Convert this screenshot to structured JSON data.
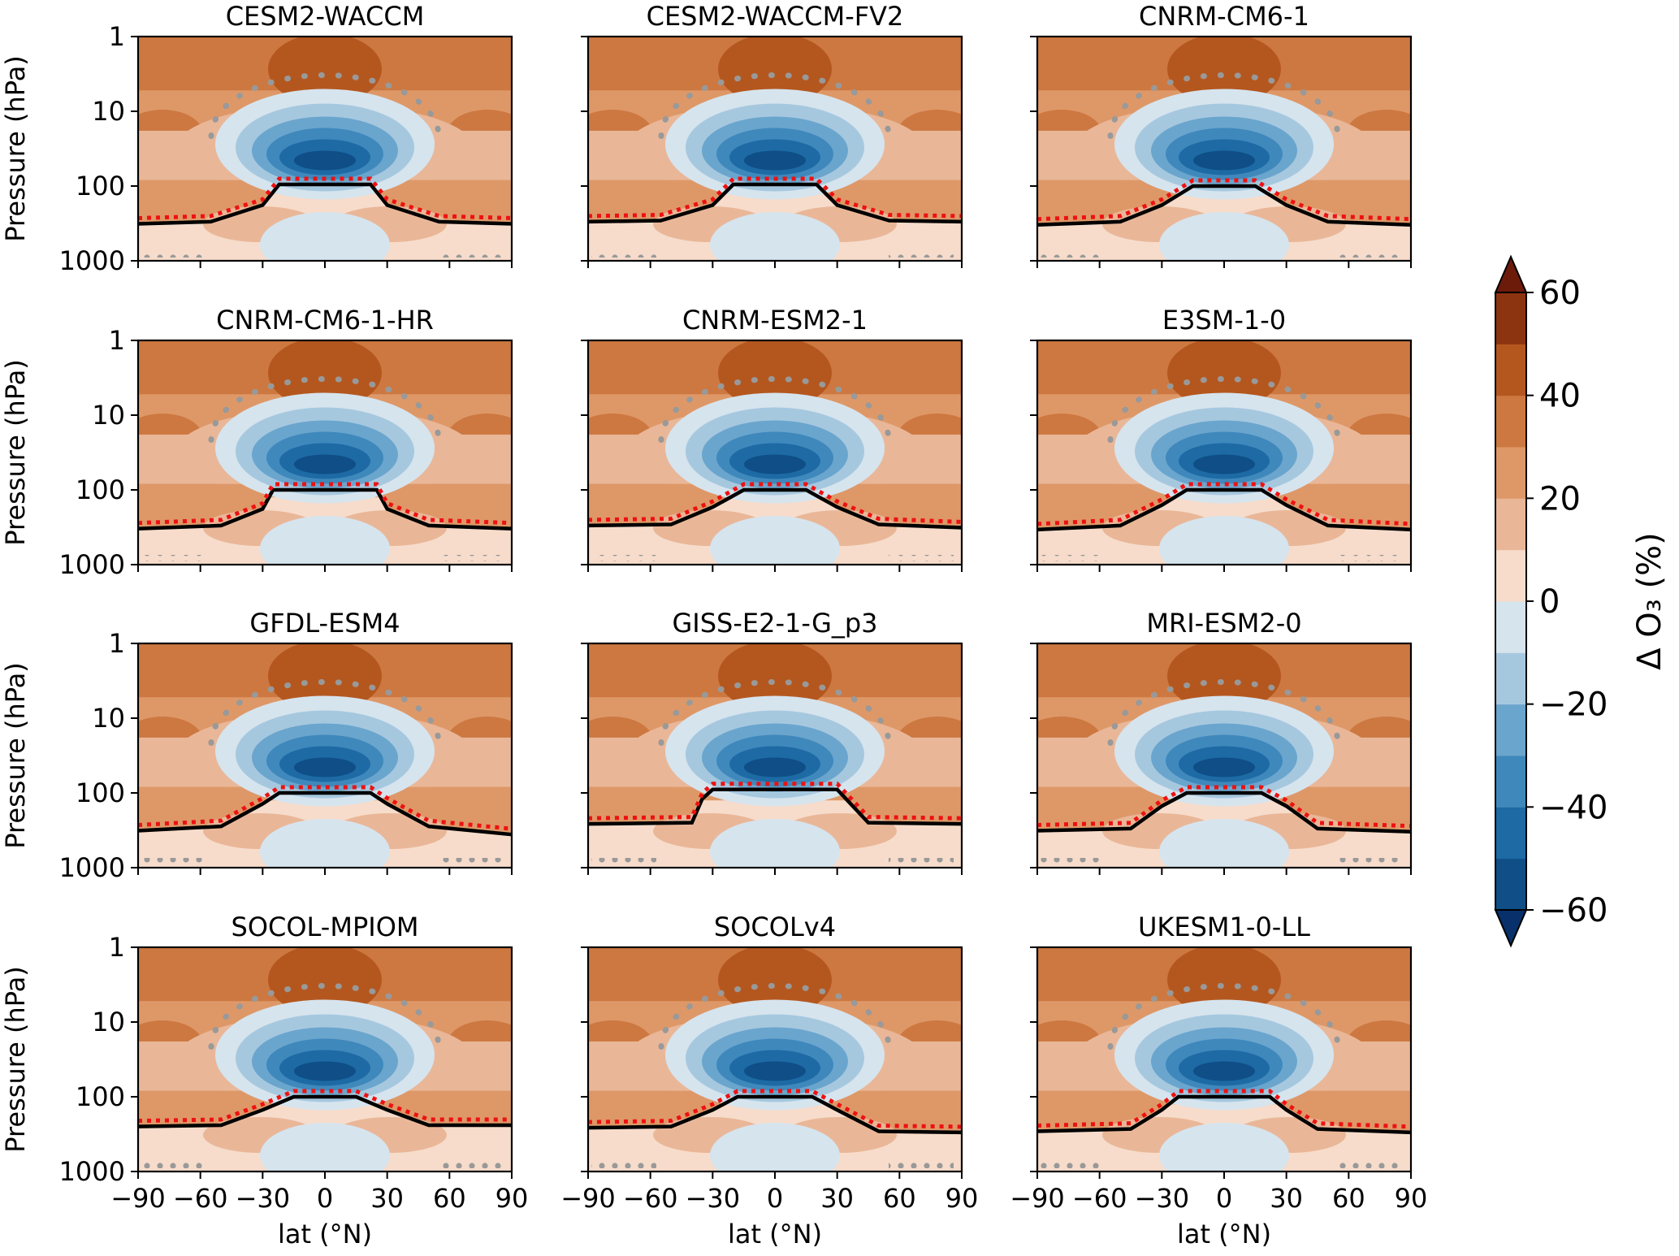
{
  "chart_data": {
    "type": "heatmap",
    "x_label": "lat (°N)",
    "y_label": "Pressure (hPa)",
    "x_ticks": [
      -90,
      -60,
      -30,
      0,
      30,
      60,
      90
    ],
    "x_tick_labels": [
      "−90",
      "−60",
      "−30",
      "0",
      "30",
      "60",
      "90"
    ],
    "xlim": [
      -90,
      90
    ],
    "y_ticks": [
      1,
      10,
      100,
      1000
    ],
    "y_tick_labels": [
      "1",
      "10",
      "100",
      "1000"
    ],
    "ylim": [
      1000,
      1
    ],
    "y_scale": "log",
    "colorbar": {
      "label": "Δ O₃ (%)",
      "ticks": [
        60,
        40,
        20,
        0,
        -20,
        -40,
        -60
      ],
      "tick_labels": [
        "60",
        "40",
        "20",
        "0",
        "−20",
        "−40",
        "−60"
      ],
      "levels": [
        -60,
        -50,
        -40,
        -30,
        -20,
        -10,
        0,
        10,
        20,
        30,
        40,
        50,
        60
      ],
      "colors": [
        "#08306b",
        "#0f4e86",
        "#1d6aa5",
        "#3f88bc",
        "#6aa5cd",
        "#a6c8df",
        "#d6e4ee",
        "#f7dccb",
        "#e9b798",
        "#de9868",
        "#cd7841",
        "#b4571f",
        "#8c3410",
        "#6c1b0b"
      ],
      "extend": "both"
    },
    "panels": [
      {
        "title": "CESM2-WACCM",
        "tropopause_hpa": [
          {
            "lat": -90,
            "p": 320
          },
          {
            "lat": -55,
            "p": 300
          },
          {
            "lat": -30,
            "p": 180
          },
          {
            "lat": -22,
            "p": 95
          },
          {
            "lat": 22,
            "p": 95
          },
          {
            "lat": 30,
            "p": 180
          },
          {
            "lat": 55,
            "p": 300
          },
          {
            "lat": 90,
            "p": 320
          }
        ]
      },
      {
        "title": "CESM2-WACCM-FV2",
        "tropopause_hpa": [
          {
            "lat": -90,
            "p": 300
          },
          {
            "lat": -55,
            "p": 290
          },
          {
            "lat": -30,
            "p": 180
          },
          {
            "lat": -20,
            "p": 95
          },
          {
            "lat": 20,
            "p": 95
          },
          {
            "lat": 30,
            "p": 180
          },
          {
            "lat": 55,
            "p": 290
          },
          {
            "lat": 90,
            "p": 300
          }
        ]
      },
      {
        "title": "CNRM-CM6-1",
        "tropopause_hpa": [
          {
            "lat": -90,
            "p": 330
          },
          {
            "lat": -50,
            "p": 300
          },
          {
            "lat": -30,
            "p": 180
          },
          {
            "lat": -15,
            "p": 100
          },
          {
            "lat": 15,
            "p": 100
          },
          {
            "lat": 30,
            "p": 180
          },
          {
            "lat": 50,
            "p": 300
          },
          {
            "lat": 90,
            "p": 330
          }
        ]
      },
      {
        "title": "CNRM-CM6-1-HR",
        "tropopause_hpa": [
          {
            "lat": -90,
            "p": 330
          },
          {
            "lat": -50,
            "p": 300
          },
          {
            "lat": -30,
            "p": 180
          },
          {
            "lat": -25,
            "p": 100
          },
          {
            "lat": 25,
            "p": 100
          },
          {
            "lat": 30,
            "p": 180
          },
          {
            "lat": 50,
            "p": 300
          },
          {
            "lat": 90,
            "p": 330
          }
        ]
      },
      {
        "title": "CNRM-ESM2-1",
        "tropopause_hpa": [
          {
            "lat": -90,
            "p": 300
          },
          {
            "lat": -50,
            "p": 290
          },
          {
            "lat": -30,
            "p": 170
          },
          {
            "lat": -15,
            "p": 100
          },
          {
            "lat": 15,
            "p": 100
          },
          {
            "lat": 30,
            "p": 170
          },
          {
            "lat": 50,
            "p": 290
          },
          {
            "lat": 90,
            "p": 320
          }
        ]
      },
      {
        "title": "E3SM-1-0",
        "tropopause_hpa": [
          {
            "lat": -90,
            "p": 340
          },
          {
            "lat": -50,
            "p": 300
          },
          {
            "lat": -30,
            "p": 160
          },
          {
            "lat": -18,
            "p": 100
          },
          {
            "lat": 18,
            "p": 100
          },
          {
            "lat": 30,
            "p": 160
          },
          {
            "lat": 50,
            "p": 300
          },
          {
            "lat": 90,
            "p": 340
          }
        ]
      },
      {
        "title": "GFDL-ESM4",
        "tropopause_hpa": [
          {
            "lat": -90,
            "p": 320
          },
          {
            "lat": -50,
            "p": 280
          },
          {
            "lat": -30,
            "p": 140
          },
          {
            "lat": -22,
            "p": 100
          },
          {
            "lat": 22,
            "p": 100
          },
          {
            "lat": 30,
            "p": 140
          },
          {
            "lat": 50,
            "p": 280
          },
          {
            "lat": 90,
            "p": 360
          }
        ]
      },
      {
        "title": "GISS-E2-1-G_p3",
        "tropopause_hpa": [
          {
            "lat": -90,
            "p": 260
          },
          {
            "lat": -40,
            "p": 250
          },
          {
            "lat": -35,
            "p": 120
          },
          {
            "lat": -30,
            "p": 90
          },
          {
            "lat": 30,
            "p": 90
          },
          {
            "lat": 45,
            "p": 250
          },
          {
            "lat": 90,
            "p": 260
          }
        ]
      },
      {
        "title": "MRI-ESM2-0",
        "tropopause_hpa": [
          {
            "lat": -90,
            "p": 320
          },
          {
            "lat": -45,
            "p": 300
          },
          {
            "lat": -30,
            "p": 150
          },
          {
            "lat": -18,
            "p": 100
          },
          {
            "lat": 18,
            "p": 100
          },
          {
            "lat": 30,
            "p": 150
          },
          {
            "lat": 45,
            "p": 300
          },
          {
            "lat": 90,
            "p": 330
          }
        ]
      },
      {
        "title": "SOCOL-MPIOM",
        "tropopause_hpa": [
          {
            "lat": -90,
            "p": 250
          },
          {
            "lat": -50,
            "p": 240
          },
          {
            "lat": -30,
            "p": 150
          },
          {
            "lat": -15,
            "p": 100
          },
          {
            "lat": 15,
            "p": 100
          },
          {
            "lat": 30,
            "p": 150
          },
          {
            "lat": 50,
            "p": 240
          },
          {
            "lat": 90,
            "p": 240
          }
        ]
      },
      {
        "title": "SOCOLv4",
        "tropopause_hpa": [
          {
            "lat": -90,
            "p": 260
          },
          {
            "lat": -50,
            "p": 250
          },
          {
            "lat": -30,
            "p": 150
          },
          {
            "lat": -18,
            "p": 100
          },
          {
            "lat": 18,
            "p": 100
          },
          {
            "lat": 30,
            "p": 150
          },
          {
            "lat": 50,
            "p": 290
          },
          {
            "lat": 90,
            "p": 300
          }
        ]
      },
      {
        "title": "UKESM1-0-LL",
        "tropopause_hpa": [
          {
            "lat": -90,
            "p": 290
          },
          {
            "lat": -45,
            "p": 270
          },
          {
            "lat": -30,
            "p": 150
          },
          {
            "lat": -22,
            "p": 100
          },
          {
            "lat": 22,
            "p": 100
          },
          {
            "lat": 30,
            "p": 150
          },
          {
            "lat": 45,
            "p": 270
          },
          {
            "lat": 90,
            "p": 300
          }
        ]
      }
    ]
  }
}
